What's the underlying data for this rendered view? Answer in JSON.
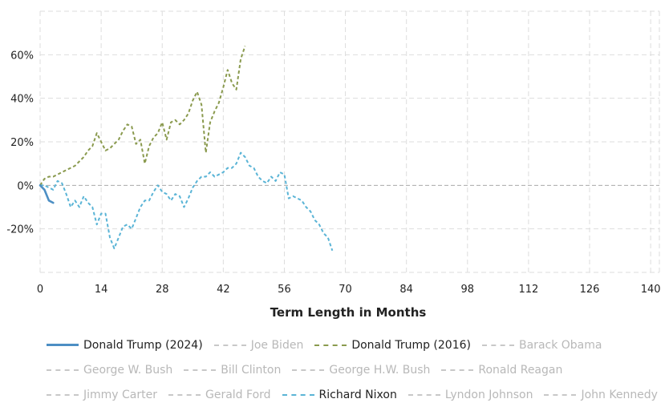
{
  "chart_data": {
    "type": "line",
    "xlabel": "Term Length in Months",
    "ylabel": "",
    "xlim": [
      0,
      142
    ],
    "ylim": [
      -40,
      80
    ],
    "xticks": [
      0,
      14,
      28,
      42,
      56,
      70,
      84,
      98,
      112,
      126,
      140
    ],
    "yticks": [
      -20,
      0,
      20,
      40,
      60
    ],
    "ytick_labels": [
      "-20%",
      "0%",
      "20%",
      "40%",
      "60%"
    ],
    "grid": true,
    "legend_position": "bottom",
    "series": [
      {
        "name": "Donald Trump (2024)",
        "color": "#4d8fc4",
        "style": "solid",
        "active": true,
        "x": [
          0,
          1,
          2,
          3
        ],
        "y": [
          0,
          -2,
          -7,
          -8
        ]
      },
      {
        "name": "Joe Biden",
        "color": "#c8c8c8",
        "style": "dashed",
        "active": false,
        "x": [],
        "y": []
      },
      {
        "name": "Donald Trump (2016)",
        "color": "#8a9a4e",
        "style": "dashed",
        "active": true,
        "x": [
          0,
          1,
          2,
          3,
          4,
          5,
          6,
          7,
          8,
          9,
          10,
          11,
          12,
          13,
          14,
          15,
          16,
          17,
          18,
          19,
          20,
          21,
          22,
          23,
          24,
          25,
          26,
          27,
          28,
          29,
          30,
          31,
          32,
          33,
          34,
          35,
          36,
          37,
          38,
          39,
          40,
          41,
          42,
          43,
          44,
          45,
          46,
          47
        ],
        "y": [
          0,
          3,
          4,
          4,
          5,
          6,
          7,
          8,
          9,
          11,
          13,
          16,
          18,
          24,
          20,
          16,
          17,
          19,
          21,
          25,
          28,
          27,
          19,
          21,
          10,
          18,
          22,
          24,
          29,
          21,
          29,
          30,
          28,
          30,
          33,
          39,
          43,
          37,
          15,
          29,
          34,
          38,
          45,
          53,
          47,
          44,
          58,
          64
        ]
      },
      {
        "name": "Barack Obama",
        "color": "#c8c8c8",
        "style": "dashed",
        "active": false,
        "x": [],
        "y": []
      },
      {
        "name": "George W. Bush",
        "color": "#c8c8c8",
        "style": "dashed",
        "active": false,
        "x": [],
        "y": []
      },
      {
        "name": "Bill Clinton",
        "color": "#c8c8c8",
        "style": "dashed",
        "active": false,
        "x": [],
        "y": []
      },
      {
        "name": "George H.W. Bush",
        "color": "#c8c8c8",
        "style": "dashed",
        "active": false,
        "x": [],
        "y": []
      },
      {
        "name": "Ronald Reagan",
        "color": "#c8c8c8",
        "style": "dashed",
        "active": false,
        "x": [],
        "y": []
      },
      {
        "name": "Jimmy Carter",
        "color": "#c8c8c8",
        "style": "dashed",
        "active": false,
        "x": [],
        "y": []
      },
      {
        "name": "Gerald Ford",
        "color": "#c8c8c8",
        "style": "dashed",
        "active": false,
        "x": [],
        "y": []
      },
      {
        "name": "Richard Nixon",
        "color": "#5ab4d6",
        "style": "dashed",
        "active": true,
        "x": [
          0,
          1,
          2,
          3,
          4,
          5,
          6,
          7,
          8,
          9,
          10,
          11,
          12,
          13,
          14,
          15,
          16,
          17,
          18,
          19,
          20,
          21,
          22,
          23,
          24,
          25,
          26,
          27,
          28,
          29,
          30,
          31,
          32,
          33,
          34,
          35,
          36,
          37,
          38,
          39,
          40,
          41,
          42,
          43,
          44,
          45,
          46,
          47,
          48,
          49,
          50,
          51,
          52,
          53,
          54,
          55,
          56,
          57,
          58,
          59,
          60,
          61,
          62,
          63,
          64,
          65,
          66,
          67
        ],
        "y": [
          0,
          0,
          -1,
          -2,
          2,
          1,
          -4,
          -10,
          -7,
          -10,
          -5,
          -8,
          -10,
          -18,
          -13,
          -13,
          -24,
          -29,
          -24,
          -19,
          -18,
          -20,
          -15,
          -10,
          -7,
          -7,
          -3,
          0,
          -3,
          -4,
          -7,
          -4,
          -5,
          -10,
          -6,
          -1,
          2,
          4,
          4,
          6,
          4,
          5,
          6,
          8,
          8,
          10,
          15,
          13,
          9,
          8,
          4,
          2,
          1,
          4,
          2,
          6,
          5,
          -6,
          -5,
          -6,
          -7,
          -10,
          -12,
          -16,
          -18,
          -22,
          -24,
          -30
        ]
      },
      {
        "name": "Lyndon Johnson",
        "color": "#c8c8c8",
        "style": "dashed",
        "active": false,
        "x": [],
        "y": []
      },
      {
        "name": "John Kennedy",
        "color": "#c8c8c8",
        "style": "dashed",
        "active": false,
        "x": [],
        "y": []
      }
    ]
  }
}
